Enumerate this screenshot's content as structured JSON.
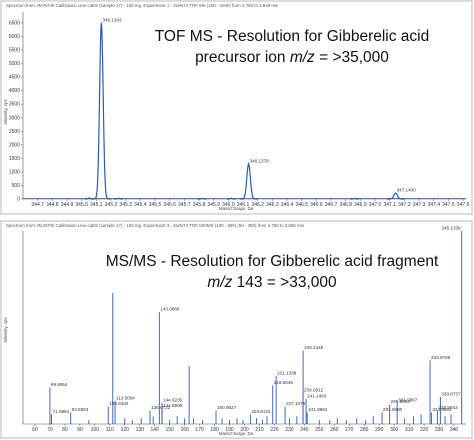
{
  "colors": {
    "trace": "#2f5aa8",
    "frame": "#b9b9b9",
    "axis": "#555555"
  },
  "chart_data": [
    {
      "type": "line",
      "header": "Spectrum from: RinN74h  Calibration  Line-cal02  (sample 17) - 100  mg. Experiment 1 , 15vN74 TOF MS (100 - 1000) from 3.750 to 3.949 min",
      "title_line1": "TOF MS - Resolution for Gibberelic acid",
      "title_line2_pre": "precursor ion ",
      "title_line2_mz": "m/z",
      "title_line2_post": " = >35,000",
      "xlabel": "Mass/Charge, Da",
      "ylabel": "Intensity, cps",
      "xlim": [
        344.6,
        347.62
      ],
      "ylim": [
        0,
        6900
      ],
      "xticks": [
        "344.7",
        "344.8",
        "344.9",
        "345.0",
        "345.1",
        "345.2",
        "345.3",
        "345.4",
        "345.5",
        "345.6",
        "345.7",
        "345.8",
        "345.9",
        "346.0",
        "346.1",
        "346.2",
        "346.3",
        "346.4",
        "346.5",
        "346.6",
        "346.7",
        "346.8",
        "346.9",
        "347.0",
        "347.1",
        "347.2",
        "347.3",
        "347.4",
        "347.5",
        "347.6"
      ],
      "yticks": [
        "0",
        "500",
        "1000",
        "1500",
        "2000",
        "2500",
        "3000",
        "3500",
        "4000",
        "4500",
        "5000",
        "5500",
        "6000",
        "6500"
      ],
      "peaks": [
        {
          "x": 345.1343,
          "y": 6500,
          "label": "345.1343",
          "w": 0.012
        },
        {
          "x": 346.1378,
          "y": 1300,
          "label": "346.1378",
          "w": 0.012
        },
        {
          "x": 347.14,
          "y": 220,
          "label": "347.1400",
          "w": 0.012
        },
        {
          "x": 345.05,
          "y": 40,
          "label": "",
          "w": 0.006
        },
        {
          "x": 345.25,
          "y": 30,
          "label": "",
          "w": 0.006
        },
        {
          "x": 345.82,
          "y": 25,
          "label": "",
          "w": 0.006
        },
        {
          "x": 346.02,
          "y": 30,
          "label": "",
          "w": 0.006
        },
        {
          "x": 346.86,
          "y": 25,
          "label": "",
          "w": 0.006
        }
      ]
    },
    {
      "type": "bar",
      "header": "Spectrum from: RinN74h  Calibration  Line-cal02  (sample 17) - 100  mg. Experiment 3 , 15vN74 TOF MS/MS (100 - 350) (50 - 350) from 3.750 to 3.995 min",
      "title_line1": "MS/MS - Resolution for Gibberelic acid fragment",
      "title_line2_pre": "",
      "title_line2_mz": "m/z",
      "title_line2_post": " 143 = >33,000",
      "xlabel": "Mass/Charge, Da",
      "ylabel": "Intensity, cps",
      "xlim": [
        52,
        348
      ],
      "ylim": [
        0,
        1
      ],
      "xticks": [
        "60",
        "70",
        "80",
        "90",
        "100",
        "110",
        "120",
        "130",
        "140",
        "150",
        "160",
        "170",
        "180",
        "190",
        "200",
        "210",
        "220",
        "230",
        "240",
        "250",
        "260",
        "270",
        "280",
        "290",
        "300",
        "310",
        "320",
        "330",
        "340"
      ],
      "peaks": [
        {
          "x": 345.1339,
          "y": 1.0,
          "label": "345.1339"
        },
        {
          "x": 143.0866,
          "y": 0.58,
          "label": "143.0866"
        },
        {
          "x": 112.0,
          "y": 0.68,
          "label": ""
        },
        {
          "x": 239.1448,
          "y": 0.38,
          "label": "239.1448"
        },
        {
          "x": 323.9768,
          "y": 0.33,
          "label": "323.9768"
        },
        {
          "x": 221.1338,
          "y": 0.25,
          "label": "221.1338"
        },
        {
          "x": 218.8646,
          "y": 0.2,
          "label": "218.8646"
        },
        {
          "x": 69.9954,
          "y": 0.19,
          "label": "69.9954"
        },
        {
          "x": 239.0912,
          "y": 0.16,
          "label": "239.0912"
        },
        {
          "x": 330.8737,
          "y": 0.14,
          "label": "330.8737"
        },
        {
          "x": 241.1463,
          "y": 0.13,
          "label": "241.1463"
        },
        {
          "x": 113.5004,
          "y": 0.12,
          "label": "113.5004"
        },
        {
          "x": 144.9235,
          "y": 0.11,
          "label": "144.9235"
        },
        {
          "x": 301.9867,
          "y": 0.11,
          "label": "301.9867"
        },
        {
          "x": 296.9903,
          "y": 0.1,
          "label": "296.9903"
        },
        {
          "x": 227.1078,
          "y": 0.09,
          "label": "227.1078"
        },
        {
          "x": 108.9334,
          "y": 0.09,
          "label": "108.9334"
        },
        {
          "x": 144.8905,
          "y": 0.08,
          "label": "144.8905"
        },
        {
          "x": 136.8722,
          "y": 0.07,
          "label": "136.8722"
        },
        {
          "x": 180.9627,
          "y": 0.07,
          "label": "180.9627"
        },
        {
          "x": 328.8643,
          "y": 0.07,
          "label": "328.8643"
        },
        {
          "x": 324.8692,
          "y": 0.06,
          "label": "324.8692"
        },
        {
          "x": 291.909,
          "y": 0.06,
          "label": "291.9090"
        },
        {
          "x": 241.8864,
          "y": 0.06,
          "label": "241.8864"
        },
        {
          "x": 83.8563,
          "y": 0.06,
          "label": "83.8563"
        },
        {
          "x": 71.0864,
          "y": 0.05,
          "label": "71.0864"
        },
        {
          "x": 203.9132,
          "y": 0.05,
          "label": "203.9132"
        },
        {
          "x": 96.0,
          "y": 0.02,
          "label": ""
        },
        {
          "x": 120.0,
          "y": 0.03,
          "label": ""
        },
        {
          "x": 125.0,
          "y": 0.02,
          "label": ""
        },
        {
          "x": 131.0,
          "y": 0.03,
          "label": ""
        },
        {
          "x": 139.0,
          "y": 0.04,
          "label": ""
        },
        {
          "x": 150.0,
          "y": 0.02,
          "label": ""
        },
        {
          "x": 155.0,
          "y": 0.04,
          "label": ""
        },
        {
          "x": 160.0,
          "y": 0.03,
          "label": ""
        },
        {
          "x": 163.0,
          "y": 0.3,
          "label": ""
        },
        {
          "x": 166.0,
          "y": 0.03,
          "label": ""
        },
        {
          "x": 172.0,
          "y": 0.02,
          "label": ""
        },
        {
          "x": 185.0,
          "y": 0.03,
          "label": ""
        },
        {
          "x": 190.0,
          "y": 0.02,
          "label": ""
        },
        {
          "x": 195.0,
          "y": 0.03,
          "label": ""
        },
        {
          "x": 199.0,
          "y": 0.02,
          "label": ""
        },
        {
          "x": 208.0,
          "y": 0.03,
          "label": ""
        },
        {
          "x": 212.0,
          "y": 0.02,
          "label": ""
        },
        {
          "x": 215.0,
          "y": 0.04,
          "label": ""
        },
        {
          "x": 230.0,
          "y": 0.03,
          "label": ""
        },
        {
          "x": 235.0,
          "y": 0.04,
          "label": ""
        },
        {
          "x": 250.0,
          "y": 0.02,
          "label": ""
        },
        {
          "x": 257.0,
          "y": 0.02,
          "label": ""
        },
        {
          "x": 262.0,
          "y": 0.03,
          "label": ""
        },
        {
          "x": 268.0,
          "y": 0.02,
          "label": ""
        },
        {
          "x": 275.0,
          "y": 0.03,
          "label": ""
        },
        {
          "x": 281.0,
          "y": 0.02,
          "label": ""
        },
        {
          "x": 286.0,
          "y": 0.04,
          "label": ""
        },
        {
          "x": 307.0,
          "y": 0.03,
          "label": ""
        },
        {
          "x": 313.0,
          "y": 0.04,
          "label": ""
        },
        {
          "x": 318.0,
          "y": 0.05,
          "label": ""
        },
        {
          "x": 334.0,
          "y": 0.04,
          "label": ""
        },
        {
          "x": 338.0,
          "y": 0.05,
          "label": ""
        }
      ]
    }
  ]
}
